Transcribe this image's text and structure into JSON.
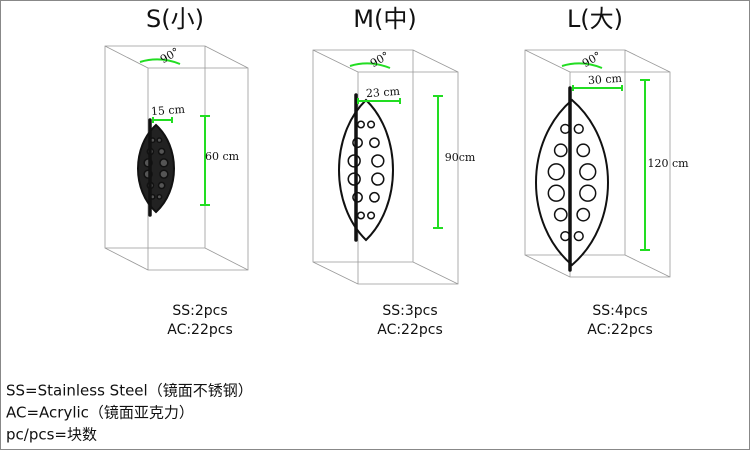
{
  "products": [
    {
      "size": "S(小)",
      "angle": "90°",
      "width": "15 cm",
      "height": "60 cm",
      "ss": "SS:2pcs",
      "ac": "AC:22pcs"
    },
    {
      "size": "M(中)",
      "angle": "90°",
      "width": "23 cm",
      "height": "90cm",
      "ss": "SS:3pcs",
      "ac": "AC:22pcs"
    },
    {
      "size": "L(大)",
      "angle": "90°",
      "width": "30 cm",
      "height": "120 cm",
      "ss": "SS:4pcs",
      "ac": "AC:22pcs"
    }
  ],
  "legend": [
    "SS=Stainless Steel（镜面不锈钢）",
    "AC=Acrylic（镜面亚克力）",
    "pc/pcs=块数"
  ]
}
